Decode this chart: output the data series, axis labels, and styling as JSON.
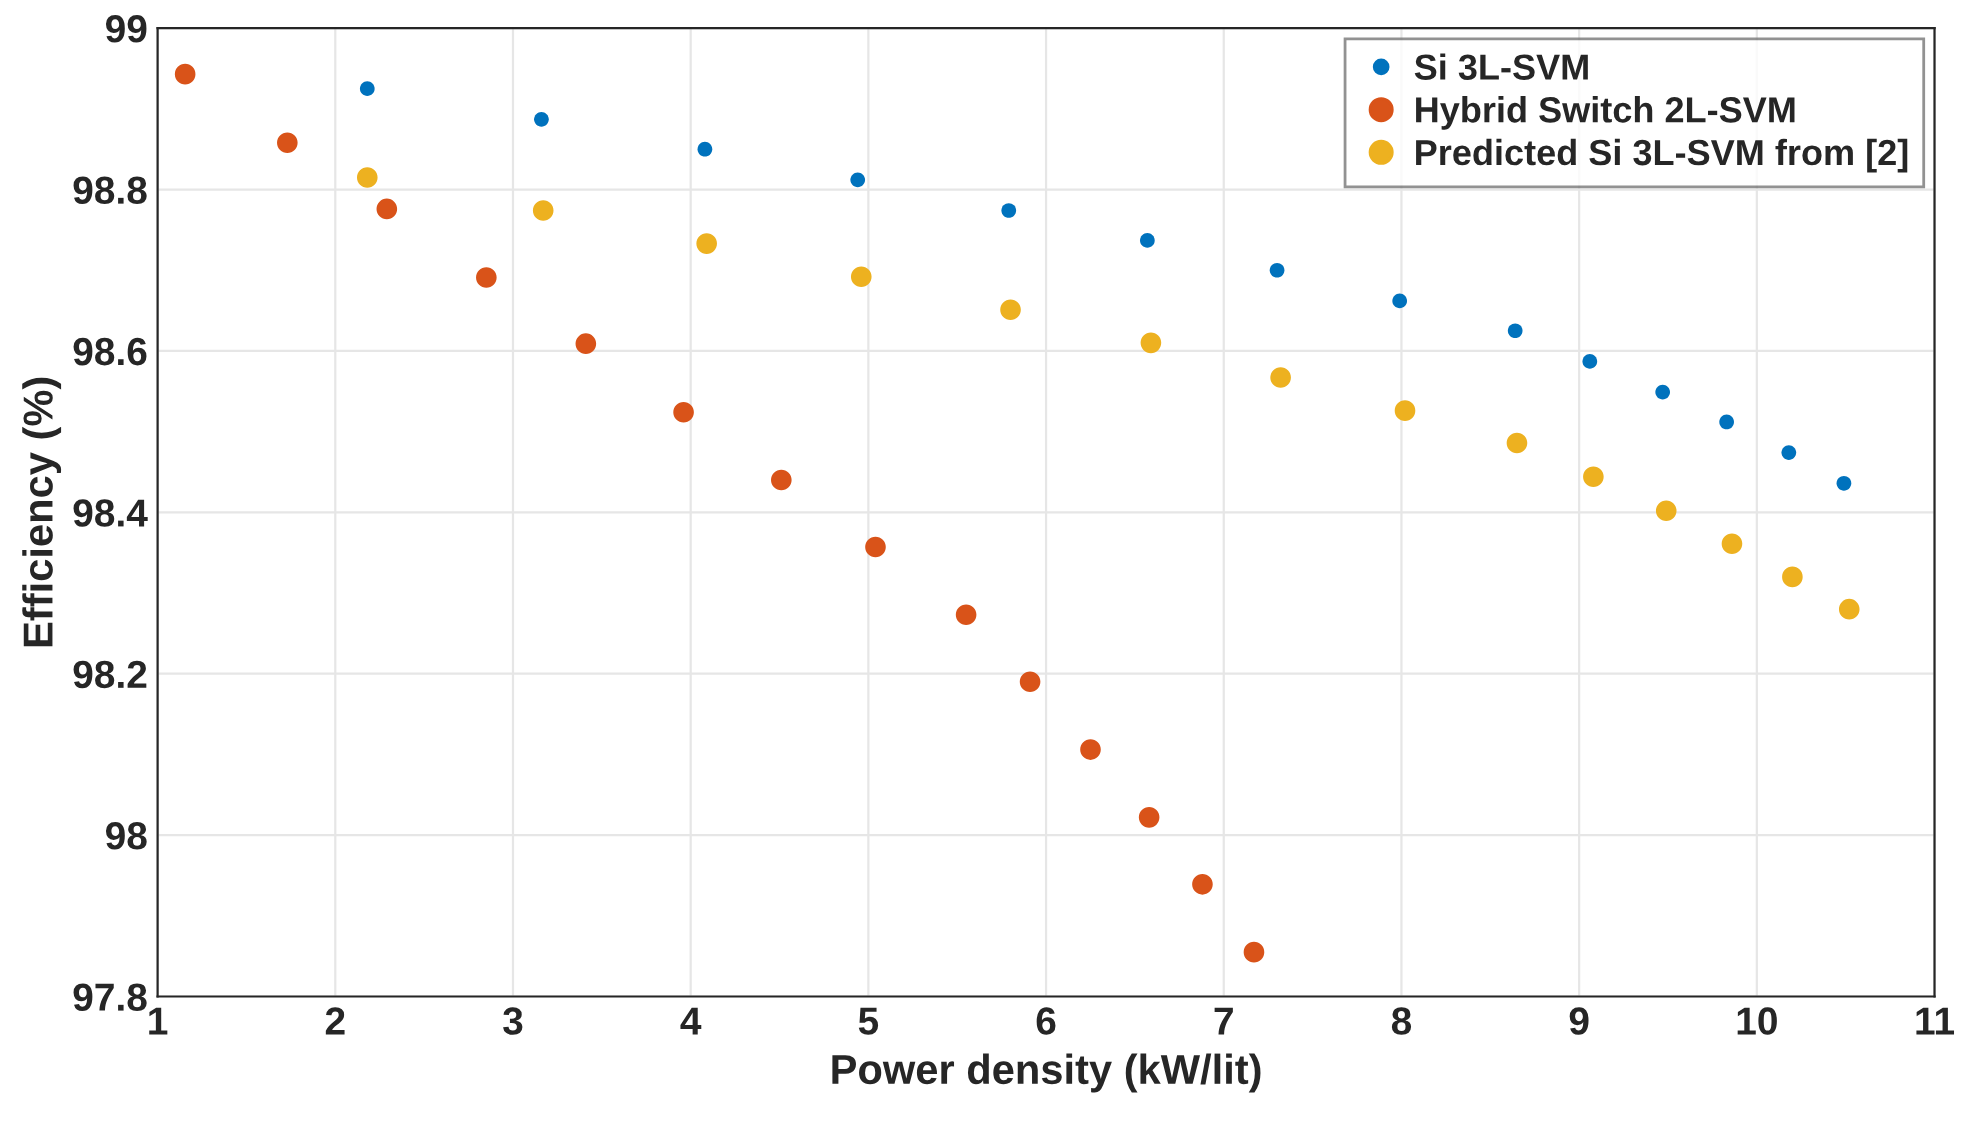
{
  "chart_data": {
    "type": "scatter",
    "xlabel": "Power density (kW/lit)",
    "ylabel": "Efficiency (%)",
    "xlim": [
      1,
      11
    ],
    "xticks": [
      1,
      2,
      3,
      4,
      5,
      6,
      7,
      8,
      9,
      10,
      11
    ],
    "ylim": [
      97.8,
      99
    ],
    "yticks": [
      {
        "value": 97.8,
        "label": "97.8"
      },
      {
        "value": 98,
        "label": "98"
      },
      {
        "value": 98.2,
        "label": "98.2"
      },
      {
        "value": 98.4,
        "label": "98.4"
      },
      {
        "value": 98.6,
        "label": "98.6"
      },
      {
        "value": 98.8,
        "label": "98.8"
      },
      {
        "value": 99,
        "label": "99"
      }
    ],
    "grid": true,
    "legend": "top right",
    "marker": "circle",
    "series": [
      {
        "name": "Si 3L-SVM",
        "color": "#0072bd",
        "x": [
          2.18,
          3.16,
          4.08,
          4.94,
          5.79,
          6.57,
          7.3,
          7.99,
          8.64,
          9.06,
          9.47,
          9.83,
          10.18,
          10.49
        ],
        "values": [
          98.925,
          98.887,
          98.85,
          98.812,
          98.774,
          98.737,
          98.7,
          98.662,
          98.625,
          98.587,
          98.549,
          98.512,
          98.474,
          98.436
        ]
      },
      {
        "name": "Hybrid Switch 2L-SVM",
        "color": "#d95319",
        "x": [
          1.155,
          1.73,
          2.29,
          2.85,
          3.41,
          3.96,
          4.51,
          5.04,
          5.55,
          5.91,
          6.25,
          6.58,
          6.88,
          7.17
        ],
        "values": [
          98.943,
          98.858,
          98.776,
          98.691,
          98.609,
          98.524,
          98.44,
          98.357,
          98.273,
          98.19,
          98.106,
          98.022,
          97.939,
          97.855
        ]
      },
      {
        "name": "Predicted Si 3L-SVM from [2]",
        "color": "#edb120",
        "x": [
          2.18,
          3.17,
          4.09,
          4.96,
          5.8,
          6.59,
          7.32,
          8.02,
          8.65,
          9.08,
          9.49,
          9.86,
          10.2,
          10.52
        ],
        "values": [
          98.815,
          98.774,
          98.733,
          98.692,
          98.651,
          98.61,
          98.567,
          98.526,
          98.486,
          98.444,
          98.402,
          98.361,
          98.32,
          98.28
        ]
      }
    ]
  }
}
